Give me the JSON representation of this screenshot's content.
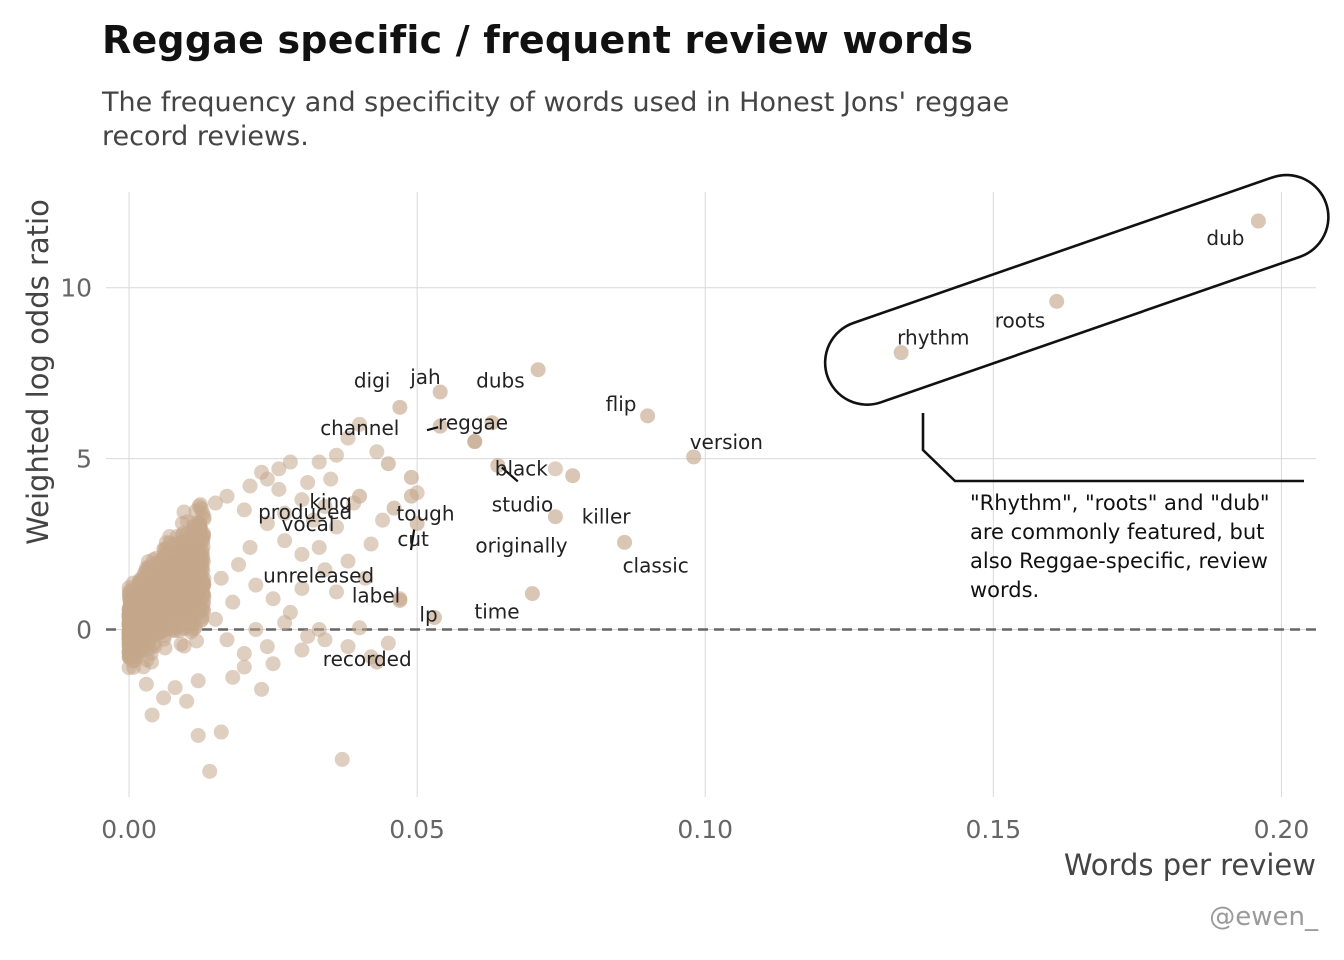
{
  "title": "Reggae specific / frequent review words",
  "subtitle": "The frequency and specificity of words used in Honest Jons' reggae record reviews.",
  "credit": "@ewen_",
  "annotation": "\"Rhythm\", \"roots\" and \"dub\" are commonly featured, but also Reggae-specific, review words.",
  "colors": {
    "point": "#c4a78c",
    "grid": "#d9d9d9",
    "zero_line": "#666666"
  },
  "chart_data": {
    "type": "scatter",
    "xlabel": "Words per review",
    "ylabel": "Weighted log odds ratio",
    "xlim": [
      -0.004,
      0.206
    ],
    "ylim": [
      -4.9,
      12.8
    ],
    "x_ticks": [
      {
        "value": 0.0,
        "label": "0.00"
      },
      {
        "value": 0.05,
        "label": "0.05"
      },
      {
        "value": 0.1,
        "label": "0.10"
      },
      {
        "value": 0.15,
        "label": "0.15"
      },
      {
        "value": 0.2,
        "label": "0.20"
      }
    ],
    "y_ticks": [
      {
        "value": 0,
        "label": "0"
      },
      {
        "value": 5,
        "label": "5"
      },
      {
        "value": 10,
        "label": "10"
      }
    ],
    "grid": true,
    "reference_line": {
      "y": 0,
      "style": "dashed"
    },
    "labeled_points": [
      {
        "word": "dub",
        "x": 0.196,
        "y": 11.95
      },
      {
        "word": "roots",
        "x": 0.161,
        "y": 9.6
      },
      {
        "word": "rhythm",
        "x": 0.134,
        "y": 8.1
      },
      {
        "word": "dubs",
        "x": 0.071,
        "y": 7.6
      },
      {
        "word": "jah",
        "x": 0.054,
        "y": 6.95
      },
      {
        "word": "digi",
        "x": 0.047,
        "y": 6.5
      },
      {
        "word": "flip",
        "x": 0.09,
        "y": 6.25
      },
      {
        "word": "reggae",
        "x": 0.063,
        "y": 6.05
      },
      {
        "word": "channel",
        "x": 0.054,
        "y": 5.95
      },
      {
        "word": "black",
        "x": 0.06,
        "y": 5.5
      },
      {
        "word": "version",
        "x": 0.098,
        "y": 5.05
      },
      {
        "word": "king",
        "x": 0.045,
        "y": 4.85
      },
      {
        "word": "tough",
        "x": 0.049,
        "y": 4.45
      },
      {
        "word": "studio",
        "x": 0.064,
        "y": 4.8
      },
      {
        "word": "killer",
        "x": 0.077,
        "y": 4.5
      },
      {
        "word": "vocal",
        "x": 0.04,
        "y": 3.9
      },
      {
        "word": "cut",
        "x": 0.049,
        "y": 3.9
      },
      {
        "word": "produced",
        "x": 0.046,
        "y": 3.55
      },
      {
        "word": "unreleased",
        "x": 0.05,
        "y": 3.1
      },
      {
        "word": "originally",
        "x": 0.074,
        "y": 3.3
      },
      {
        "word": "classic",
        "x": 0.086,
        "y": 2.55
      },
      {
        "word": "time",
        "x": 0.07,
        "y": 1.05
      },
      {
        "word": "label",
        "x": 0.047,
        "y": 0.85
      },
      {
        "word": "lp",
        "x": 0.053,
        "y": 0.35
      },
      {
        "word": "recorded",
        "x": 0.043,
        "y": -0.95
      }
    ],
    "background_points": [
      [
        0.014,
        -4.15
      ],
      [
        0.037,
        -3.8
      ],
      [
        0.012,
        -3.1
      ],
      [
        0.016,
        -3.0
      ],
      [
        0.004,
        -2.5
      ],
      [
        0.008,
        -1.7
      ],
      [
        0.012,
        -1.5
      ],
      [
        0.018,
        -1.4
      ],
      [
        0.023,
        -1.75
      ],
      [
        0.02,
        -1.1
      ],
      [
        0.025,
        -1.0
      ],
      [
        0.03,
        -0.6
      ],
      [
        0.034,
        -0.3
      ],
      [
        0.038,
        -0.5
      ],
      [
        0.042,
        -0.8
      ],
      [
        0.045,
        -0.4
      ],
      [
        0.04,
        0.05
      ],
      [
        0.033,
        0.0
      ],
      [
        0.028,
        0.5
      ],
      [
        0.025,
        0.9
      ],
      [
        0.022,
        1.3
      ],
      [
        0.03,
        1.2
      ],
      [
        0.036,
        1.1
      ],
      [
        0.041,
        1.5
      ],
      [
        0.047,
        0.9
      ],
      [
        0.034,
        1.75
      ],
      [
        0.03,
        2.2
      ],
      [
        0.027,
        2.6
      ],
      [
        0.033,
        2.4
      ],
      [
        0.038,
        2.0
      ],
      [
        0.042,
        2.5
      ],
      [
        0.044,
        3.2
      ],
      [
        0.036,
        3.0
      ],
      [
        0.034,
        3.6
      ],
      [
        0.03,
        3.8
      ],
      [
        0.026,
        4.1
      ],
      [
        0.023,
        4.6
      ],
      [
        0.028,
        4.9
      ],
      [
        0.033,
        4.9
      ],
      [
        0.036,
        5.1
      ],
      [
        0.038,
        5.6
      ],
      [
        0.04,
        6.0
      ],
      [
        0.043,
        5.2
      ],
      [
        0.06,
        5.5
      ],
      [
        0.074,
        4.7
      ],
      [
        0.05,
        4.0
      ],
      [
        0.02,
        3.5
      ],
      [
        0.017,
        3.9
      ],
      [
        0.024,
        3.1
      ],
      [
        0.021,
        2.4
      ],
      [
        0.019,
        1.9
      ],
      [
        0.016,
        1.5
      ],
      [
        0.018,
        0.8
      ],
      [
        0.015,
        0.3
      ],
      [
        0.017,
        -0.3
      ],
      [
        0.02,
        -0.7
      ],
      [
        0.01,
        -2.1
      ],
      [
        0.006,
        -2.0
      ],
      [
        0.003,
        -1.6
      ],
      [
        0.001,
        -0.9
      ],
      [
        0.027,
        0.2
      ],
      [
        0.031,
        -0.2
      ],
      [
        0.024,
        -0.5
      ],
      [
        0.022,
        0.0
      ],
      [
        0.027,
        3.4
      ],
      [
        0.032,
        3.2
      ],
      [
        0.039,
        3.7
      ],
      [
        0.013,
        3.3
      ],
      [
        0.015,
        3.7
      ],
      [
        0.011,
        2.9
      ],
      [
        0.024,
        4.4
      ],
      [
        0.021,
        4.2
      ],
      [
        0.031,
        4.3
      ],
      [
        0.035,
        4.4
      ],
      [
        0.026,
        4.7
      ]
    ]
  }
}
